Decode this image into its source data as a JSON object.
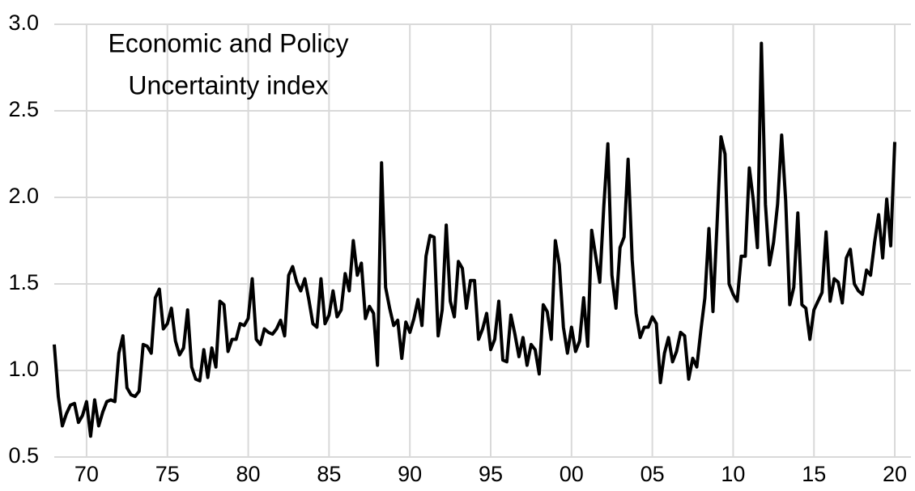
{
  "chart_data": {
    "type": "line",
    "title": [
      "Economic and Policy",
      "Uncertainty index"
    ],
    "x": [
      1968,
      1968.25,
      1968.5,
      1968.75,
      1969,
      1969.25,
      1969.5,
      1969.75,
      1970,
      1970.25,
      1970.5,
      1970.75,
      1971,
      1971.25,
      1971.5,
      1971.75,
      1972,
      1972.25,
      1972.5,
      1972.75,
      1973,
      1973.25,
      1973.5,
      1973.75,
      1974,
      1974.25,
      1974.5,
      1974.75,
      1975,
      1975.25,
      1975.5,
      1975.75,
      1976,
      1976.25,
      1976.5,
      1976.75,
      1977,
      1977.25,
      1977.5,
      1977.75,
      1978,
      1978.25,
      1978.5,
      1978.75,
      1979,
      1979.25,
      1979.5,
      1979.75,
      1980,
      1980.25,
      1980.5,
      1980.75,
      1981,
      1981.25,
      1981.5,
      1981.75,
      1982,
      1982.25,
      1982.5,
      1982.75,
      1983,
      1983.25,
      1983.5,
      1983.75,
      1984,
      1984.25,
      1984.5,
      1984.75,
      1985,
      1985.25,
      1985.5,
      1985.75,
      1986,
      1986.25,
      1986.5,
      1986.75,
      1987,
      1987.25,
      1987.5,
      1987.75,
      1988,
      1988.25,
      1988.5,
      1988.75,
      1989,
      1989.25,
      1989.5,
      1989.75,
      1990,
      1990.25,
      1990.5,
      1990.75,
      1991,
      1991.25,
      1991.5,
      1991.75,
      1992,
      1992.25,
      1992.5,
      1992.75,
      1993,
      1993.25,
      1993.5,
      1993.75,
      1994,
      1994.25,
      1994.5,
      1994.75,
      1995,
      1995.25,
      1995.5,
      1995.75,
      1996,
      1996.25,
      1996.5,
      1996.75,
      1997,
      1997.25,
      1997.5,
      1997.75,
      1998,
      1998.25,
      1998.5,
      1998.75,
      1999,
      1999.25,
      1999.5,
      1999.75,
      2000,
      2000.25,
      2000.5,
      2000.75,
      2001,
      2001.25,
      2001.5,
      2001.75,
      2002,
      2002.25,
      2002.5,
      2002.75,
      2003,
      2003.25,
      2003.5,
      2003.75,
      2004,
      2004.25,
      2004.5,
      2004.75,
      2005,
      2005.25,
      2005.5,
      2005.75,
      2006,
      2006.25,
      2006.5,
      2006.75,
      2007,
      2007.25,
      2007.5,
      2007.75,
      2008,
      2008.25,
      2008.5,
      2008.75,
      2009,
      2009.25,
      2009.5,
      2009.75,
      2010,
      2010.25,
      2010.5,
      2010.75,
      2011,
      2011.25,
      2011.5,
      2011.75,
      2012,
      2012.25,
      2012.5,
      2012.75,
      2013,
      2013.25,
      2013.5,
      2013.75,
      2014,
      2014.25,
      2014.5,
      2014.75,
      2015,
      2015.25,
      2015.5,
      2015.75,
      2016,
      2016.25,
      2016.5,
      2016.75,
      2017,
      2017.25,
      2017.5,
      2017.75,
      2018,
      2018.25,
      2018.5,
      2018.75,
      2019,
      2019.25,
      2019.5,
      2019.75,
      2020
    ],
    "series": [
      {
        "color": "#000000",
        "values": [
          1.15,
          0.85,
          0.68,
          0.75,
          0.8,
          0.81,
          0.7,
          0.74,
          0.82,
          0.62,
          0.83,
          0.68,
          0.76,
          0.82,
          0.83,
          0.82,
          1.1,
          1.2,
          0.9,
          0.86,
          0.85,
          0.88,
          1.15,
          1.14,
          1.1,
          1.42,
          1.47,
          1.24,
          1.27,
          1.36,
          1.17,
          1.09,
          1.13,
          1.35,
          1.02,
          0.95,
          0.94,
          1.12,
          0.96,
          1.13,
          1.02,
          1.4,
          1.38,
          1.11,
          1.18,
          1.18,
          1.27,
          1.26,
          1.3,
          1.53,
          1.18,
          1.15,
          1.24,
          1.22,
          1.21,
          1.24,
          1.29,
          1.2,
          1.55,
          1.6,
          1.51,
          1.46,
          1.53,
          1.41,
          1.27,
          1.25,
          1.53,
          1.27,
          1.32,
          1.46,
          1.31,
          1.35,
          1.56,
          1.46,
          1.75,
          1.55,
          1.62,
          1.3,
          1.37,
          1.33,
          1.03,
          2.2,
          1.48,
          1.36,
          1.26,
          1.29,
          1.07,
          1.28,
          1.22,
          1.3,
          1.41,
          1.26,
          1.66,
          1.78,
          1.77,
          1.2,
          1.35,
          1.84,
          1.4,
          1.31,
          1.63,
          1.59,
          1.36,
          1.52,
          1.52,
          1.18,
          1.24,
          1.33,
          1.12,
          1.18,
          1.4,
          1.06,
          1.05,
          1.32,
          1.21,
          1.08,
          1.19,
          1.03,
          1.15,
          1.12,
          0.98,
          1.38,
          1.34,
          1.18,
          1.75,
          1.61,
          1.25,
          1.1,
          1.25,
          1.11,
          1.17,
          1.42,
          1.14,
          1.81,
          1.66,
          1.51,
          1.95,
          2.31,
          1.55,
          1.36,
          1.71,
          1.77,
          2.22,
          1.64,
          1.33,
          1.19,
          1.25,
          1.25,
          1.31,
          1.27,
          0.93,
          1.1,
          1.19,
          1.05,
          1.11,
          1.22,
          1.2,
          0.95,
          1.07,
          1.02,
          1.23,
          1.42,
          1.82,
          1.34,
          1.84,
          2.35,
          2.25,
          1.5,
          1.44,
          1.4,
          1.66,
          1.66,
          2.17,
          1.98,
          1.71,
          2.89,
          1.96,
          1.61,
          1.74,
          1.96,
          2.36,
          1.98,
          1.38,
          1.48,
          1.91,
          1.38,
          1.36,
          1.18,
          1.35,
          1.4,
          1.45,
          1.8,
          1.4,
          1.53,
          1.51,
          1.39,
          1.65,
          1.7,
          1.5,
          1.46,
          1.44,
          1.58,
          1.55,
          1.74,
          1.9,
          1.65,
          1.99,
          1.72,
          2.32
        ]
      }
    ],
    "xlim": [
      1968,
      2021
    ],
    "xticks": [
      {
        "value": 1970,
        "label": "70"
      },
      {
        "value": 1975,
        "label": "75"
      },
      {
        "value": 1980,
        "label": "80"
      },
      {
        "value": 1985,
        "label": "85"
      },
      {
        "value": 1990,
        "label": "90"
      },
      {
        "value": 1995,
        "label": "95"
      },
      {
        "value": 2000,
        "label": "00"
      },
      {
        "value": 2005,
        "label": "05"
      },
      {
        "value": 2010,
        "label": "10"
      },
      {
        "value": 2015,
        "label": "15"
      },
      {
        "value": 2020,
        "label": "20"
      }
    ],
    "ylim": [
      0.5,
      3.0
    ],
    "yticks": [
      0.5,
      {
        "value": 1,
        "label": "1.0"
      },
      1.5,
      {
        "value": 2,
        "label": "2.0"
      },
      2.5,
      {
        "value": 3,
        "label": "3.0"
      }
    ],
    "grid": true
  }
}
